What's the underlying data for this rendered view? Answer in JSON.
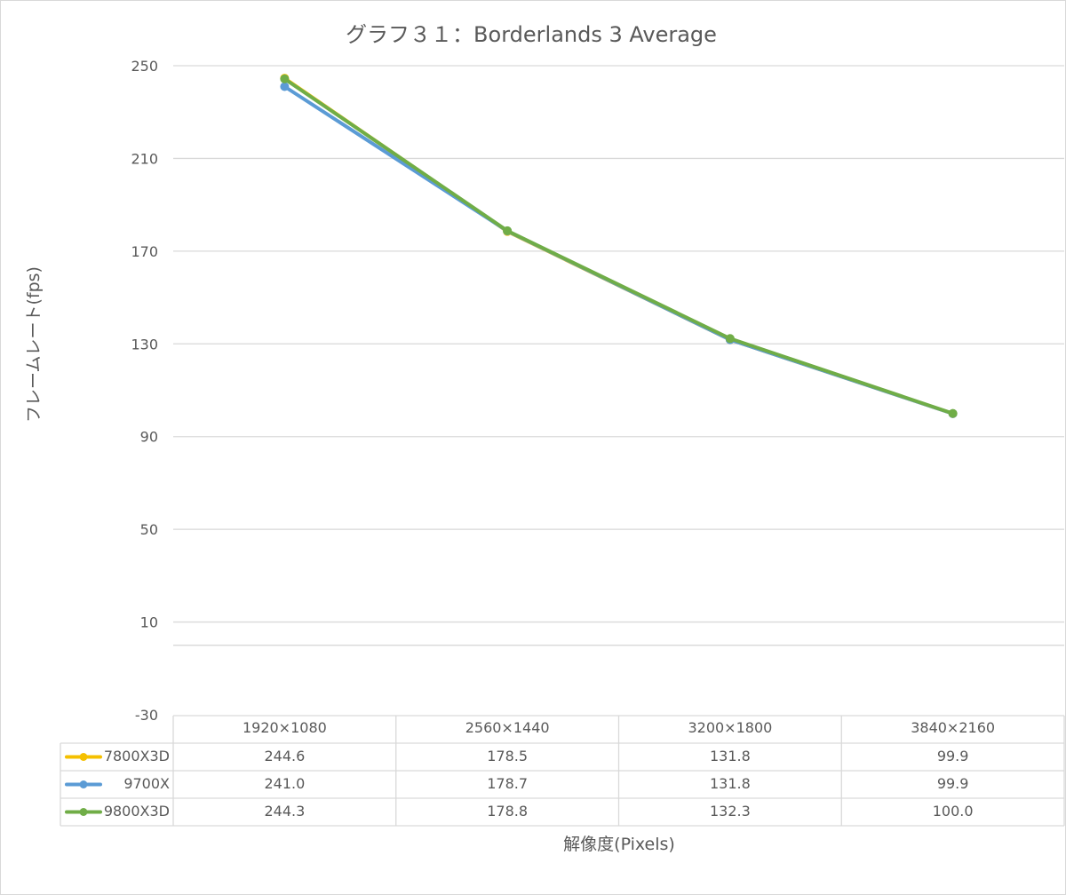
{
  "chart_data": {
    "type": "line",
    "title": "グラフ３１：Borderlands 3 Average",
    "xlabel": "解像度(Pixels)",
    "ylabel": "フレームレート(fps)",
    "categories": [
      "1920×1080",
      "2560×1440",
      "3200×1800",
      "3840×2160"
    ],
    "y_ticks": [
      "250",
      "210",
      "170",
      "130",
      "90",
      "50",
      "10",
      "-30"
    ],
    "ylim": [
      -30,
      250
    ],
    "grid": true,
    "legend": "data-table",
    "series": [
      {
        "name": "7800X3D",
        "color": "#f5c000",
        "values": [
          244.6,
          178.5,
          131.8,
          99.9
        ],
        "labels": [
          "244.6",
          "178.5",
          "131.8",
          "99.9"
        ]
      },
      {
        "name": "9700X",
        "color": "#5b9bd5",
        "values": [
          241.0,
          178.7,
          131.8,
          99.9
        ],
        "labels": [
          "241.0",
          "178.7",
          "131.8",
          "99.9"
        ]
      },
      {
        "name": "9800X3D",
        "color": "#70ad47",
        "values": [
          244.3,
          178.8,
          132.3,
          100.0
        ],
        "labels": [
          "244.3",
          "178.8",
          "132.3",
          "100.0"
        ]
      }
    ]
  }
}
